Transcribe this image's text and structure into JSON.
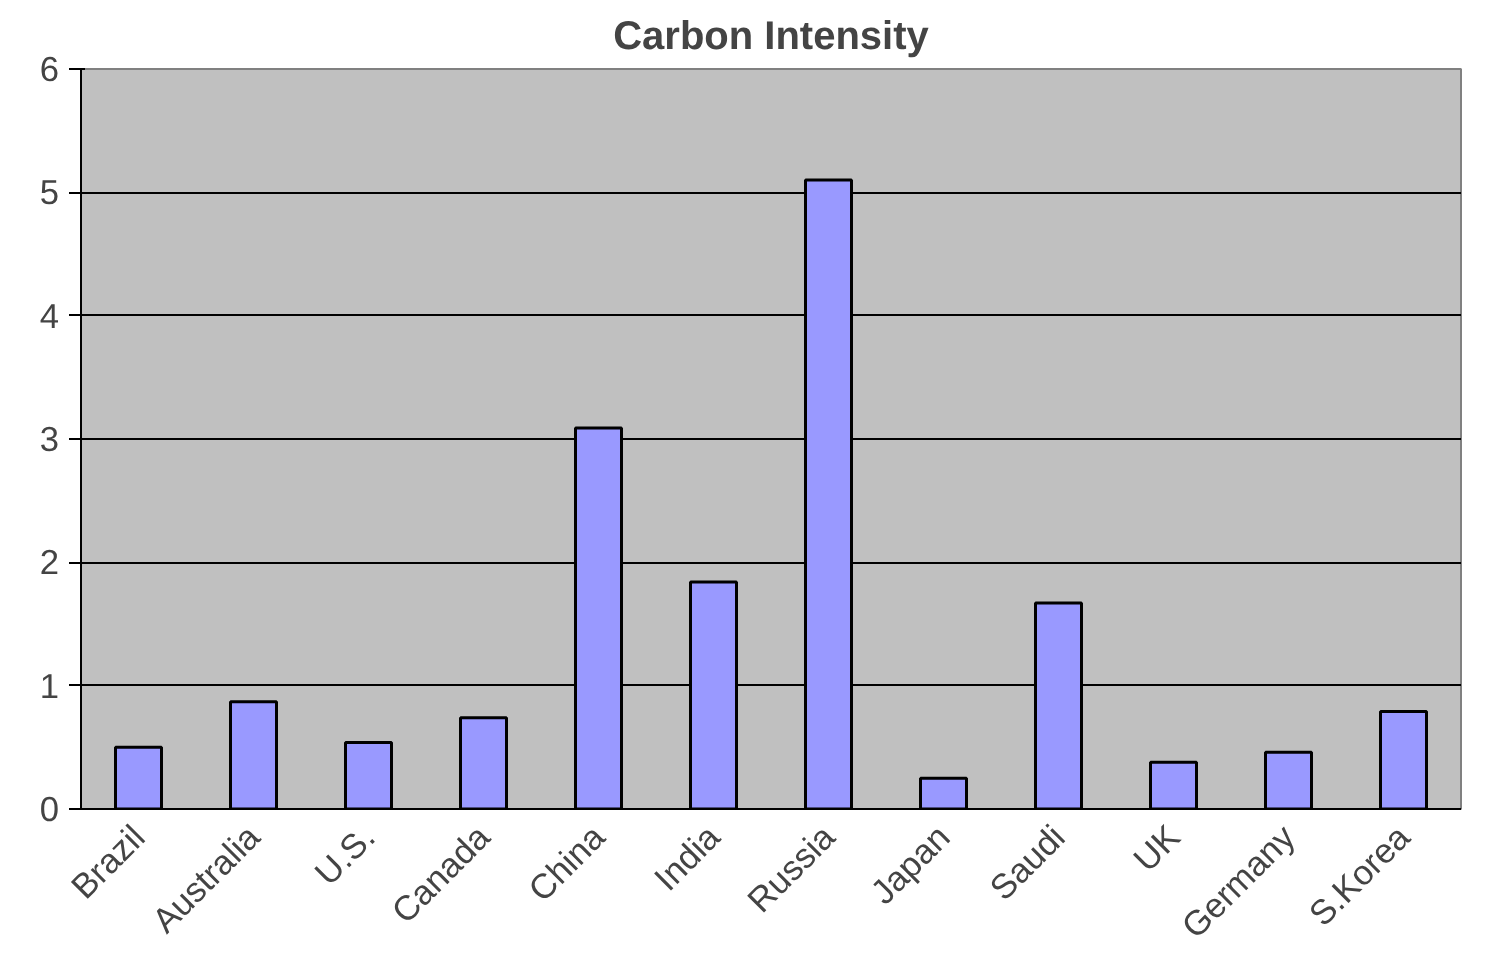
{
  "chart_data": {
    "type": "bar",
    "title": "Carbon Intensity",
    "categories": [
      "Brazil",
      "Australia",
      "U.S.",
      "Canada",
      "China",
      "India",
      "Russia",
      "Japan",
      "Saudi",
      "UK",
      "Germany",
      "S.Korea"
    ],
    "values": [
      0.5,
      0.87,
      0.54,
      0.74,
      3.09,
      1.84,
      5.1,
      0.25,
      1.67,
      0.38,
      0.46,
      0.79
    ],
    "color": "#9999ff",
    "ylim": [
      0,
      6
    ],
    "yticks": [
      0,
      1,
      2,
      3,
      4,
      5,
      6
    ],
    "grid": "y"
  }
}
